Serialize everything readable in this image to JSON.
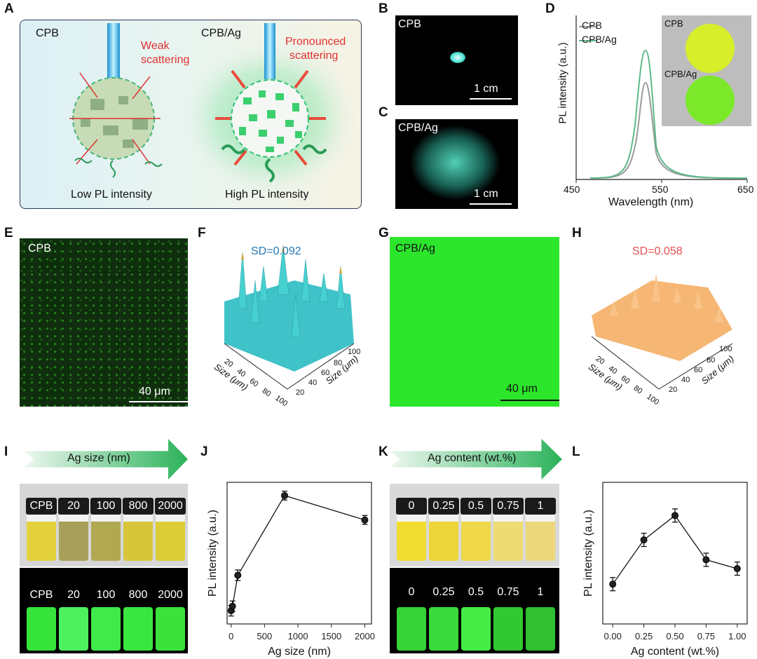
{
  "panel_letters": [
    "A",
    "B",
    "C",
    "D",
    "E",
    "F",
    "G",
    "H",
    "I",
    "J",
    "K",
    "L"
  ],
  "panelA": {
    "left_title": "CPB",
    "right_title": "CPB/Ag",
    "weak_line1": "Weak",
    "weak_line2": "scattering",
    "pron_line1": "Pronounced",
    "pron_line2": "scattering",
    "low_label": "Low PL intensity",
    "high_label": "High PL intensity",
    "accent_red": "#e03030",
    "accent_green": "#2fbf71"
  },
  "panelB": {
    "label": "CPB",
    "scale": "1 cm"
  },
  "panelC": {
    "label": "CPB/Ag",
    "scale": "1 cm"
  },
  "panelD": {
    "ylabel": "PL intensity (a.u.)",
    "xlabel": "Wavelength (nm)",
    "xticks": [
      "450",
      "550",
      "650"
    ],
    "legend": [
      "CPB",
      "CPB/Ag"
    ],
    "inset_labels": [
      "CPB",
      "CPB/Ag"
    ]
  },
  "panelE": {
    "label": "CPB",
    "scale": "40 μm"
  },
  "panelF": {
    "sd": "SD=0.092",
    "axis1": "Size (μm)",
    "axis2": "Size (μm)",
    "ticks_a": [
      "20",
      "40",
      "60",
      "80",
      "100"
    ],
    "ticks_b": [
      "20",
      "40",
      "60",
      "80",
      "100"
    ]
  },
  "panelG": {
    "label": "CPB/Ag",
    "scale": "40 μm"
  },
  "panelH": {
    "sd": "SD=0.058",
    "axis1": "Size (μm)",
    "axis2": "Size (μm)",
    "ticks_a": [
      "20",
      "40",
      "60",
      "80",
      "100"
    ],
    "ticks_b": [
      "20",
      "40",
      "60",
      "80",
      "100"
    ]
  },
  "panelI": {
    "arrow_text": "Ag  size (nm)",
    "vials": [
      "CPB",
      "20",
      "100",
      "800",
      "2000"
    ]
  },
  "panelK": {
    "arrow_text": "Ag content (wt.%)",
    "vials": [
      "0",
      "0.25",
      "0.5",
      "0.75",
      "1"
    ]
  },
  "chart_data": [
    {
      "id": "J",
      "type": "line",
      "x": [
        0,
        20,
        100,
        800,
        2000
      ],
      "y": [
        0.3,
        0.4,
        1.1,
        2.9,
        2.35
      ],
      "err": [
        0.12,
        0.12,
        0.12,
        0.1,
        0.1
      ],
      "xlabel": "Ag size (nm)",
      "ylabel": "PL intensity (a.u.)",
      "xticks": [
        "0",
        "500",
        "1000",
        "1500",
        "2000"
      ],
      "xlim": [
        -60,
        2100
      ],
      "ylim": [
        0,
        3.2
      ]
    },
    {
      "id": "L",
      "type": "line",
      "x": [
        0.0,
        0.25,
        0.5,
        0.75,
        1.0
      ],
      "y": [
        0.9,
        1.9,
        2.45,
        1.45,
        1.25
      ],
      "err": [
        0.15,
        0.15,
        0.15,
        0.15,
        0.15
      ],
      "xlabel": "Ag content (wt.%)",
      "ylabel": "PL intensity (a.u.)",
      "xticks": [
        "0.00",
        "0.25",
        "0.50",
        "0.75",
        "1.00"
      ],
      "xlim": [
        -0.08,
        1.08
      ],
      "ylim": [
        0,
        3.2
      ]
    }
  ]
}
